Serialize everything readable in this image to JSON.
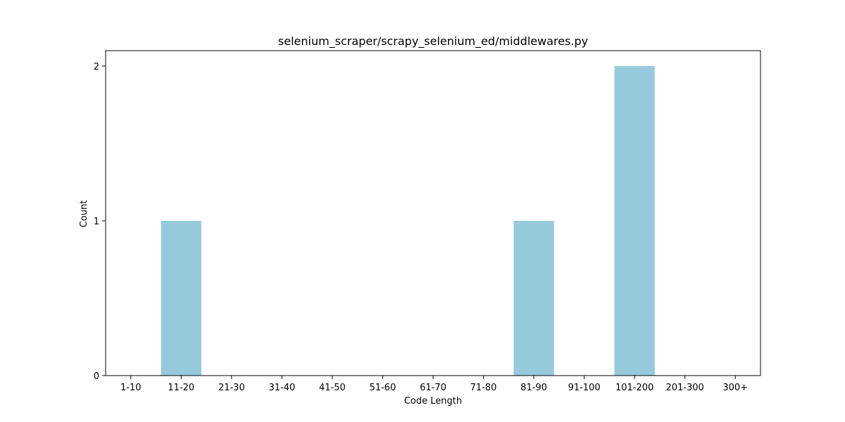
{
  "chart_data": {
    "type": "bar",
    "title": "selenium_scraper/scrapy_selenium_ed/middlewares.py",
    "xlabel": "Code Length",
    "ylabel": "Count",
    "categories": [
      "1-10",
      "11-20",
      "21-30",
      "31-40",
      "41-50",
      "51-60",
      "61-70",
      "71-80",
      "81-90",
      "91-100",
      "101-200",
      "201-300",
      "300+"
    ],
    "values": [
      0,
      1,
      0,
      0,
      0,
      0,
      0,
      0,
      1,
      0,
      2,
      0,
      0
    ],
    "ylim": [
      0,
      2.1
    ],
    "yticks": [
      0,
      1,
      2
    ],
    "ytick_labels": [
      "0",
      "1",
      "2"
    ],
    "grid": false,
    "bar_color": "#96c9dc",
    "axis_color": "#000000"
  }
}
